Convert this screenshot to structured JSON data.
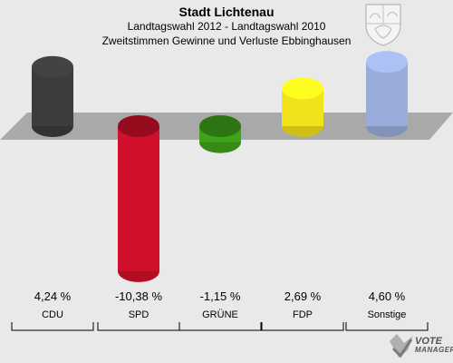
{
  "header": {
    "title": "Stadt Lichtenau",
    "subtitle": "Landtagswahl 2012 - Landtagswahl 2010",
    "subtitle2": "Zweitstimmen Gewinne und Verluste Ebbinghausen"
  },
  "logo": {
    "line1": "VOTE",
    "line2": "MANAGER"
  },
  "chart_data": {
    "type": "bar",
    "categories": [
      "CDU",
      "SPD",
      "GRÜNE",
      "FDP",
      "Sonstige"
    ],
    "values": [
      4.24,
      -10.38,
      -1.15,
      2.69,
      4.6
    ],
    "value_labels": [
      "4,24 %",
      "-10,38 %",
      "-1,15 %",
      "2,69 %",
      "4,60 %"
    ],
    "colors": [
      "#3c3c3c",
      "#d0102a",
      "#3fa31b",
      "#f2e21c",
      "#9aacda"
    ],
    "ylim": [
      -10.38,
      4.6
    ],
    "grid": false,
    "legend": "none"
  }
}
